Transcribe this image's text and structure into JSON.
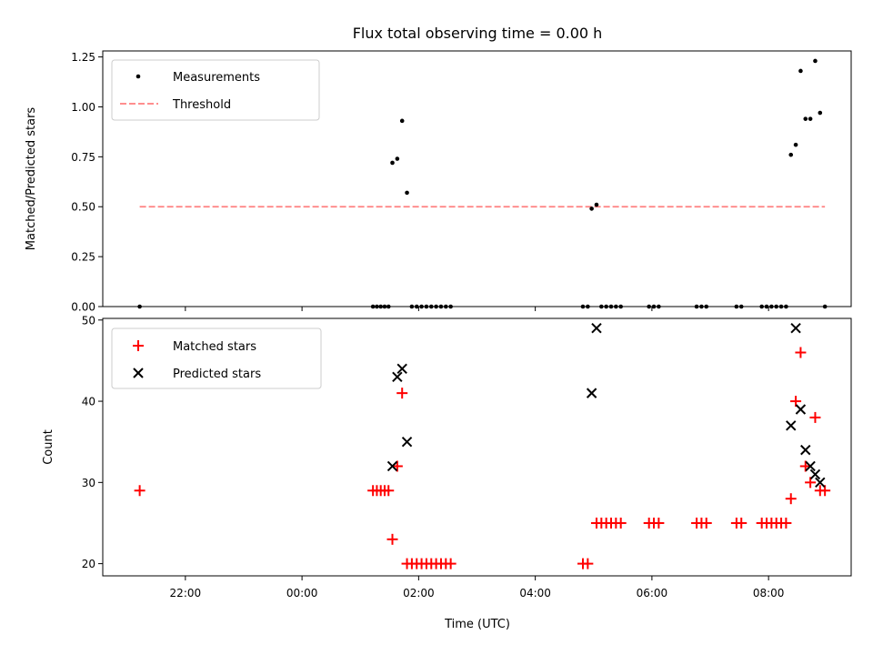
{
  "chart_data": [
    {
      "type": "scatter",
      "title": "Flux total observing time = 0.00 h",
      "xlabel": "",
      "ylabel": "Matched/Predicted stars",
      "ylim": [
        0,
        1.28
      ],
      "xlim": [
        "20:35",
        "09:25"
      ],
      "yticks": [
        "0.00",
        "0.25",
        "0.50",
        "0.75",
        "1.00",
        "1.25"
      ],
      "ytick_values": [
        0,
        0.25,
        0.5,
        0.75,
        1.0,
        1.25
      ],
      "legend_position": "upper-left",
      "series": [
        {
          "name": "Measurements",
          "marker": "dot",
          "color": "#000000",
          "points": [
            [
              "21:13",
              0
            ],
            [
              "01:13",
              0
            ],
            [
              "01:17",
              0
            ],
            [
              "01:21",
              0
            ],
            [
              "01:25",
              0
            ],
            [
              "01:29",
              0
            ],
            [
              "01:33",
              0.72
            ],
            [
              "01:38",
              0.74
            ],
            [
              "01:43",
              0.93
            ],
            [
              "01:48",
              0.57
            ],
            [
              "01:53",
              0
            ],
            [
              "01:58",
              0
            ],
            [
              "02:03",
              0
            ],
            [
              "02:08",
              0
            ],
            [
              "02:13",
              0
            ],
            [
              "02:18",
              0
            ],
            [
              "02:23",
              0
            ],
            [
              "02:28",
              0
            ],
            [
              "02:33",
              0
            ],
            [
              "04:49",
              0
            ],
            [
              "04:54",
              0
            ],
            [
              "04:58",
              0.49
            ],
            [
              "05:03",
              0.51
            ],
            [
              "05:08",
              0
            ],
            [
              "05:13",
              0
            ],
            [
              "05:18",
              0
            ],
            [
              "05:23",
              0
            ],
            [
              "05:28",
              0
            ],
            [
              "05:57",
              0
            ],
            [
              "06:02",
              0
            ],
            [
              "06:07",
              0
            ],
            [
              "06:46",
              0
            ],
            [
              "06:51",
              0
            ],
            [
              "06:56",
              0
            ],
            [
              "07:27",
              0
            ],
            [
              "07:32",
              0
            ],
            [
              "07:53",
              0
            ],
            [
              "07:58",
              0
            ],
            [
              "08:03",
              0
            ],
            [
              "08:08",
              0
            ],
            [
              "08:13",
              0
            ],
            [
              "08:18",
              0
            ],
            [
              "08:23",
              0.76
            ],
            [
              "08:28",
              0.81
            ],
            [
              "08:33",
              1.18
            ],
            [
              "08:38",
              0.94
            ],
            [
              "08:43",
              0.94
            ],
            [
              "08:48",
              1.23
            ],
            [
              "08:53",
              0.97
            ],
            [
              "08:58",
              0
            ]
          ]
        },
        {
          "name": "Threshold",
          "marker": "dashed-line",
          "color": "#ff7f7f",
          "points": [
            [
              "21:13",
              0.5
            ],
            [
              "08:58",
              0.5
            ]
          ]
        }
      ]
    },
    {
      "type": "scatter",
      "title": "",
      "xlabel": "Time (UTC)",
      "ylabel": "Count",
      "ylim": [
        18.5,
        50.2
      ],
      "xlim": [
        "20:35",
        "09:25"
      ],
      "yticks": [
        "20",
        "30",
        "40",
        "50"
      ],
      "ytick_values": [
        20,
        30,
        40,
        50
      ],
      "xticks": [
        "22:00",
        "00:00",
        "02:00",
        "04:00",
        "06:00",
        "08:00"
      ],
      "legend_position": "upper-left",
      "series": [
        {
          "name": "Matched stars",
          "marker": "plus",
          "color": "#ff0000",
          "points": [
            [
              "21:13",
              29
            ],
            [
              "01:13",
              29
            ],
            [
              "01:17",
              29
            ],
            [
              "01:21",
              29
            ],
            [
              "01:25",
              29
            ],
            [
              "01:29",
              29
            ],
            [
              "01:33",
              23
            ],
            [
              "01:38",
              32
            ],
            [
              "01:43",
              41
            ],
            [
              "01:48",
              20
            ],
            [
              "01:53",
              20
            ],
            [
              "01:58",
              20
            ],
            [
              "02:03",
              20
            ],
            [
              "02:08",
              20
            ],
            [
              "02:13",
              20
            ],
            [
              "02:18",
              20
            ],
            [
              "02:23",
              20
            ],
            [
              "02:28",
              20
            ],
            [
              "02:33",
              20
            ],
            [
              "04:49",
              20
            ],
            [
              "04:54",
              20
            ],
            [
              "05:03",
              25
            ],
            [
              "05:08",
              25
            ],
            [
              "05:13",
              25
            ],
            [
              "05:18",
              25
            ],
            [
              "05:23",
              25
            ],
            [
              "05:28",
              25
            ],
            [
              "05:57",
              25
            ],
            [
              "06:02",
              25
            ],
            [
              "06:07",
              25
            ],
            [
              "06:46",
              25
            ],
            [
              "06:51",
              25
            ],
            [
              "06:56",
              25
            ],
            [
              "07:27",
              25
            ],
            [
              "07:32",
              25
            ],
            [
              "07:53",
              25
            ],
            [
              "07:58",
              25
            ],
            [
              "08:03",
              25
            ],
            [
              "08:08",
              25
            ],
            [
              "08:13",
              25
            ],
            [
              "08:18",
              25
            ],
            [
              "08:23",
              28
            ],
            [
              "08:28",
              40
            ],
            [
              "08:33",
              46
            ],
            [
              "08:38",
              32
            ],
            [
              "08:43",
              30
            ],
            [
              "08:48",
              38
            ],
            [
              "08:53",
              29
            ],
            [
              "08:58",
              29
            ]
          ]
        },
        {
          "name": "Predicted stars",
          "marker": "x",
          "color": "#000000",
          "points": [
            [
              "01:33",
              32
            ],
            [
              "01:38",
              43
            ],
            [
              "01:43",
              44
            ],
            [
              "01:48",
              35
            ],
            [
              "04:58",
              41
            ],
            [
              "05:03",
              49
            ],
            [
              "08:23",
              37
            ],
            [
              "08:28",
              49
            ],
            [
              "08:33",
              39
            ],
            [
              "08:38",
              34
            ],
            [
              "08:43",
              32
            ],
            [
              "08:48",
              31
            ],
            [
              "08:53",
              30
            ]
          ]
        }
      ]
    }
  ]
}
